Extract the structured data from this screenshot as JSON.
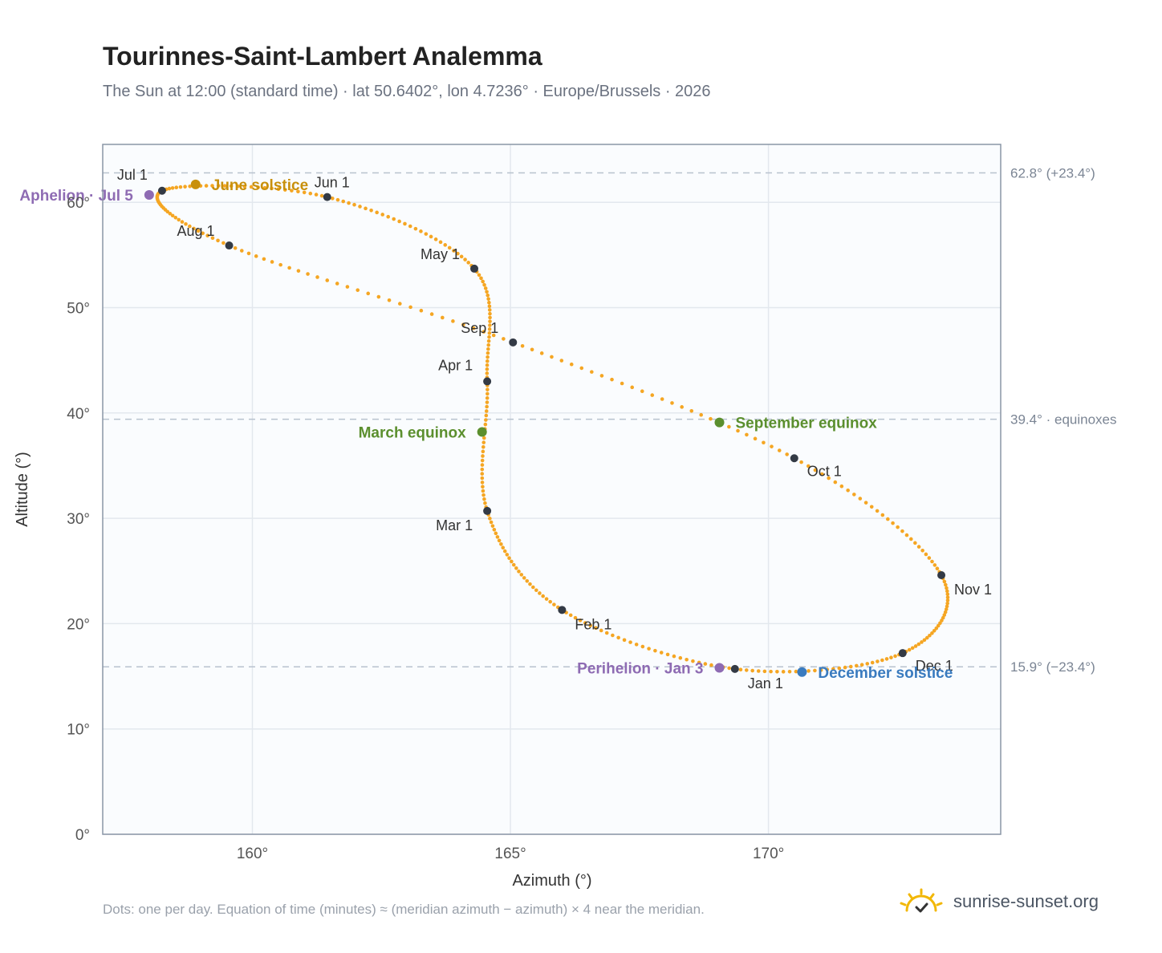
{
  "title": "Tourinnes-Saint-Lambert Analemma",
  "subtitle": "The Sun at 12:00 (standard time) · lat 50.6402°, lon 4.7236° · Europe/Brussels · 2026",
  "footnote": "Dots: one per day. Equation of time (minutes) ≈ (meridian azimuth − azimuth) × 4 near the meridian.",
  "brand": {
    "name": "sunrise-sunset.org",
    "logo_icon": "sunrise-icon",
    "color": "#f2b705"
  },
  "chart_data": {
    "type": "scatter",
    "xlabel": "Azimuth (°)",
    "ylabel": "Altitude (°)",
    "xlim": [
      157.1,
      174.5
    ],
    "ylim": [
      0,
      65.5
    ],
    "x_ticks": [
      {
        "value": 160,
        "label": "160°"
      },
      {
        "value": 165,
        "label": "165°"
      },
      {
        "value": 170,
        "label": "170°"
      }
    ],
    "y_ticks": [
      {
        "value": 0,
        "label": "0°"
      },
      {
        "value": 10,
        "label": "10°"
      },
      {
        "value": 20,
        "label": "20°"
      },
      {
        "value": 30,
        "label": "30°"
      },
      {
        "value": 40,
        "label": "40°"
      },
      {
        "value": 50,
        "label": "50°"
      },
      {
        "value": 60,
        "label": "60°"
      }
    ],
    "grid": true,
    "colors": {
      "path": "#f5a623",
      "month": "#333a45",
      "perihelion": "#8e6bb3",
      "solstice_june": "#c8900c",
      "solstice_dec": "#3a7bbf",
      "equinox": "#5b8f2e",
      "ref": "#b8c2ce",
      "plot_bg": "#fafcfe"
    },
    "reference_lines": [
      {
        "value": 62.8,
        "label": "62.8° (+23.4°)"
      },
      {
        "value": 39.4,
        "label": "39.4° · equinoxes"
      },
      {
        "value": 15.9,
        "label": "15.9° (−23.4°)"
      }
    ],
    "month_markers": [
      {
        "label": "Jan 1",
        "az": 169.35,
        "alt": 15.7
      },
      {
        "label": "Feb 1",
        "az": 166.0,
        "alt": 21.3
      },
      {
        "label": "Mar 1",
        "az": 164.55,
        "alt": 30.7
      },
      {
        "label": "Apr 1",
        "az": 164.55,
        "alt": 43.0
      },
      {
        "label": "May 1",
        "az": 164.3,
        "alt": 53.7
      },
      {
        "label": "Jun 1",
        "az": 161.45,
        "alt": 60.5
      },
      {
        "label": "Jul 1",
        "az": 158.25,
        "alt": 61.1
      },
      {
        "label": "Aug 1",
        "az": 159.55,
        "alt": 55.9
      },
      {
        "label": "Sep 1",
        "az": 165.05,
        "alt": 46.7
      },
      {
        "label": "Oct 1",
        "az": 170.5,
        "alt": 35.7
      },
      {
        "label": "Nov 1",
        "az": 173.35,
        "alt": 24.6
      },
      {
        "label": "Dec 1",
        "az": 172.6,
        "alt": 17.2
      }
    ],
    "events": [
      {
        "label": "Aphelion · Jul 5",
        "az": 158.0,
        "alt": 60.7,
        "kind": "perihelion",
        "anchor": "end"
      },
      {
        "label": "June solstice",
        "az": 158.9,
        "alt": 61.7,
        "kind": "solstice_june",
        "anchor": "start"
      },
      {
        "label": "March equinox",
        "az": 164.45,
        "alt": 38.2,
        "kind": "equinox",
        "anchor": "end"
      },
      {
        "label": "September equinox",
        "az": 169.05,
        "alt": 39.1,
        "kind": "equinox",
        "anchor": "start"
      },
      {
        "label": "Perihelion · Jan 3",
        "az": 169.05,
        "alt": 15.8,
        "kind": "perihelion",
        "anchor": "end"
      },
      {
        "label": "December solstice",
        "az": 170.65,
        "alt": 15.4,
        "kind": "solstice_dec",
        "anchor": "start"
      }
    ]
  }
}
